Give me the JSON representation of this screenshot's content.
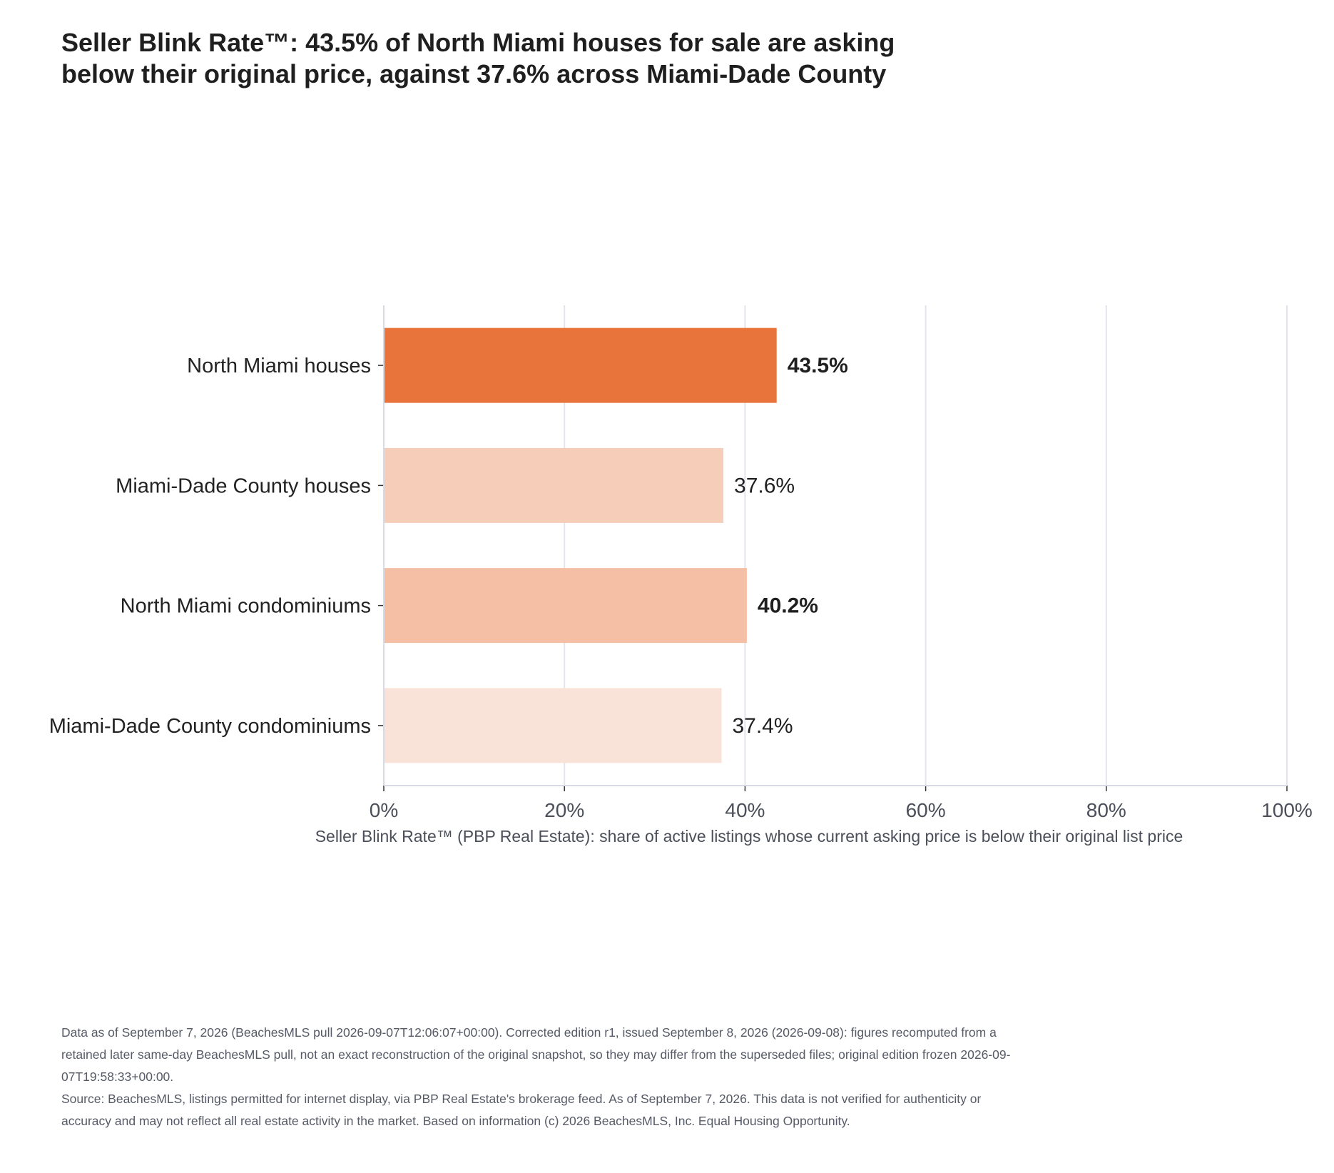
{
  "chart_data": {
    "type": "bar",
    "orientation": "horizontal",
    "title": "Seller Blink Rate™: 43.5% of North Miami houses for sale are asking below their original price, against 37.6% across Miami-Dade County",
    "xlabel": "Seller Blink Rate™ (PBP Real Estate): share of active listings whose current asking price is below their original list price",
    "ylabel": "",
    "categories": [
      "North Miami houses",
      "Miami-Dade County houses",
      "North Miami condominiums",
      "Miami-Dade County condominiums"
    ],
    "values": [
      43.5,
      37.6,
      40.2,
      37.4
    ],
    "value_labels": [
      "43.5%",
      "37.6%",
      "40.2%",
      "37.4%"
    ],
    "bar_colors": [
      "#e8743b",
      "#f6cdb9",
      "#f5bfa6",
      "#f9e2d8"
    ],
    "bold_labels": [
      true,
      false,
      true,
      false
    ],
    "xlim": [
      0,
      100
    ],
    "x_ticks": [
      0,
      20,
      40,
      60,
      80,
      100
    ],
    "x_tick_labels": [
      "0%",
      "20%",
      "40%",
      "60%",
      "80%",
      "100%"
    ],
    "grid": true
  },
  "footnotes": {
    "data_note": "Data as of September 7, 2026 (BeachesMLS pull 2026-09-07T12:06:07+00:00). Corrected edition r1, issued September 8, 2026 (2026-09-08): figures recomputed from a retained later same-day BeachesMLS pull, not an exact reconstruction of the original snapshot, so they may differ from the superseded files; original edition frozen 2026-09-07T19:58:33+00:00.",
    "source_note": "Source: BeachesMLS, listings permitted for internet display, via PBP Real Estate's brokerage feed. As of September 7, 2026. This data is not verified for authenticity or accuracy and may not reflect all real estate activity in the market. Based on information (c) 2026 BeachesMLS, Inc. Equal Housing Opportunity."
  }
}
